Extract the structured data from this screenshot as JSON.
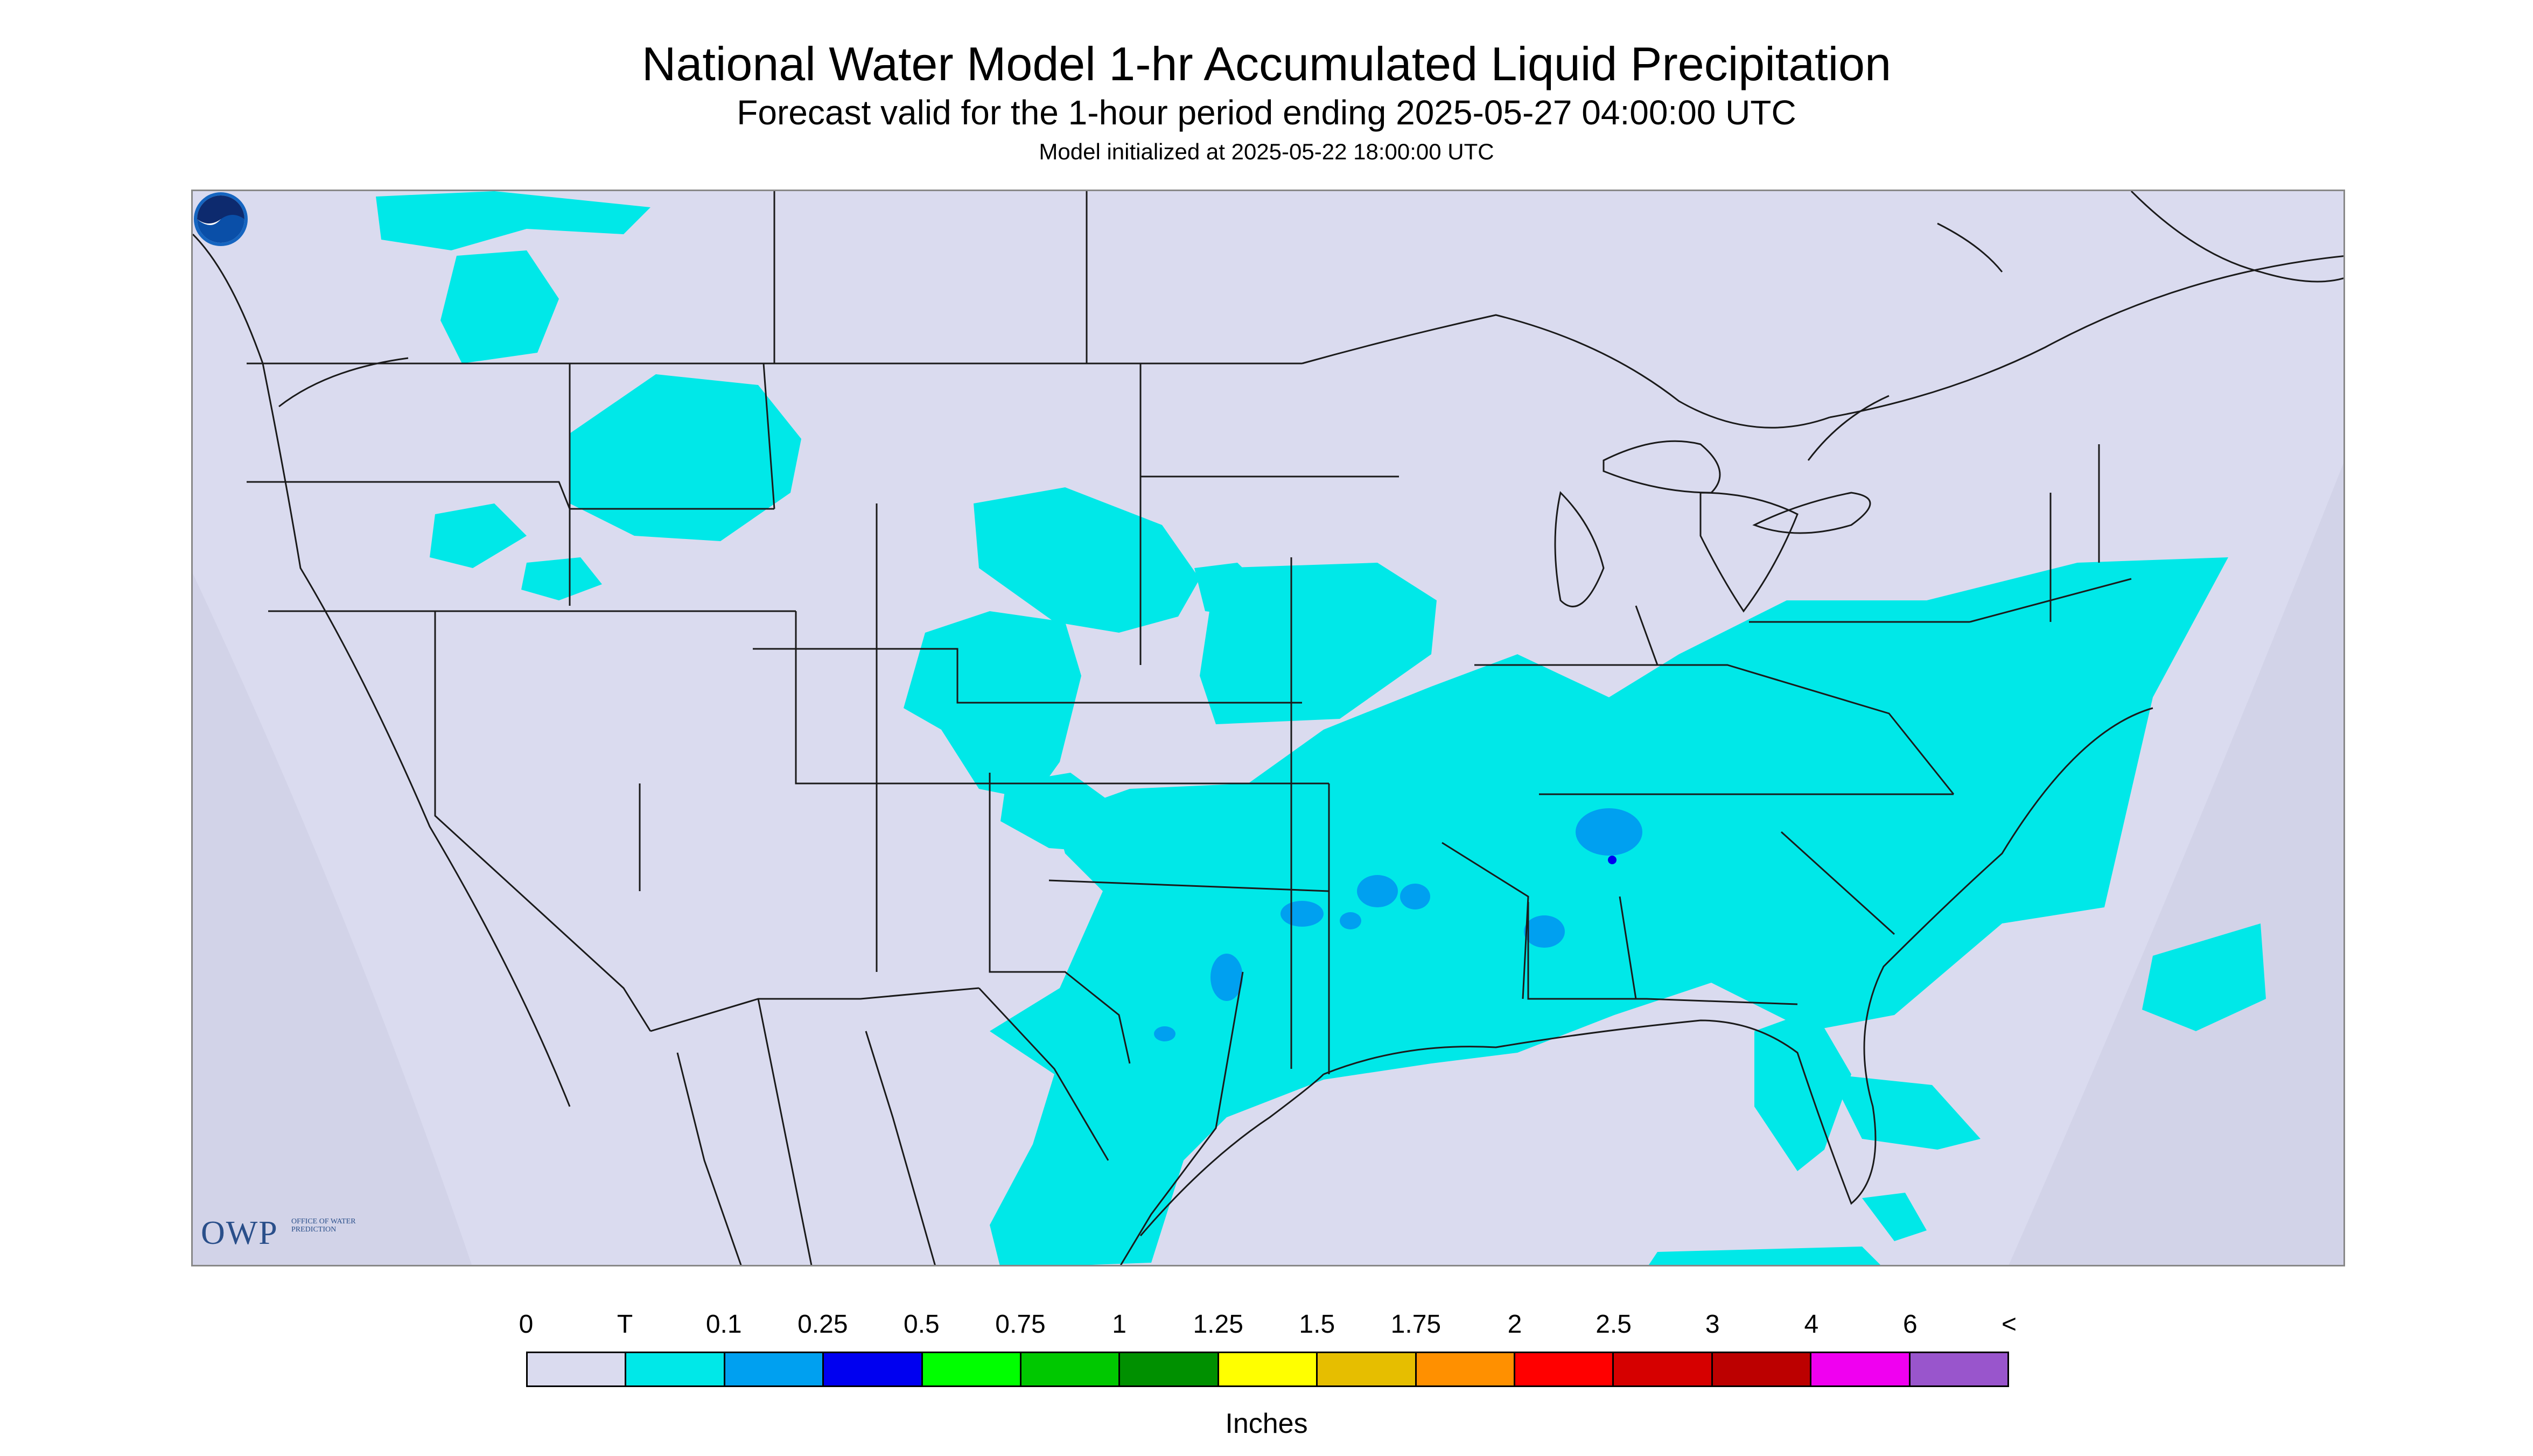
{
  "header": {
    "title": "National Water Model 1-hr Accumulated Liquid Precipitation",
    "subtitle": "Forecast valid for the 1-hour period ending 2025-05-27 04:00:00 UTC",
    "init": "Model initialized at 2025-05-22 18:00:00 UTC"
  },
  "logos": {
    "owp_big": "OWP",
    "owp_small": "OFFICE OF WATER PREDICTION",
    "noaa": "NOAA"
  },
  "legend": {
    "tick_labels": [
      "0",
      "T",
      "0.1",
      "0.25",
      "0.5",
      "0.75",
      "1",
      "1.25",
      "1.5",
      "1.75",
      "2",
      "2.5",
      "3",
      "4",
      "6",
      "<"
    ],
    "colors": [
      "#dadbef",
      "#00e8e8",
      "#00a0f0",
      "#0000f0",
      "#00ff00",
      "#00c800",
      "#009000",
      "#ffff00",
      "#e6be00",
      "#ff9000",
      "#ff0000",
      "#d60000",
      "#bc0000",
      "#f000f0",
      "#9955cc"
    ],
    "units": "Inches"
  },
  "colors": {
    "background": "#dadbef",
    "trace": "#00e8e8",
    "light_blue": "#00a0f0",
    "blue": "#0000f0",
    "state_lines": "#1a1a1a"
  }
}
